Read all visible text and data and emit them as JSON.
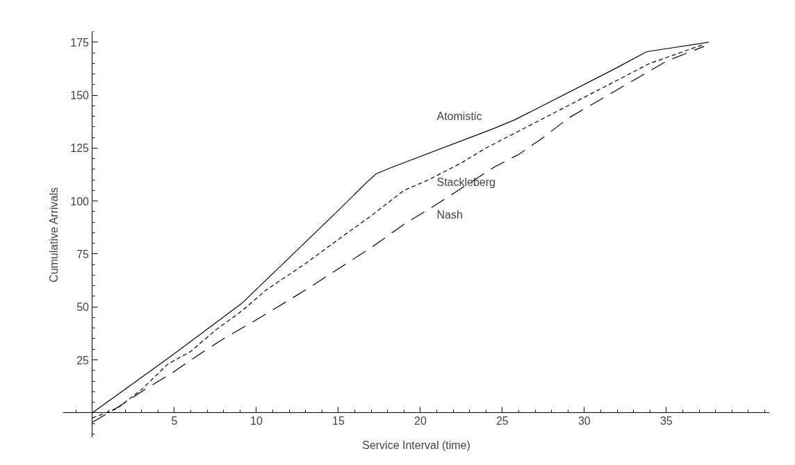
{
  "chart_data": {
    "type": "line",
    "xlabel": "Service Interval (time)",
    "ylabel": "Cumulative Arrivals",
    "xlim": [
      -1.8,
      41.3
    ],
    "ylim": [
      -11.7,
      180
    ],
    "xticks": [
      5,
      10,
      15,
      20,
      25,
      30,
      35
    ],
    "yticks": [
      25,
      50,
      75,
      100,
      125,
      150,
      175
    ],
    "series": [
      {
        "name": "Atomistic",
        "color": "#000000",
        "line_style": "solid",
        "x": [
          0,
          4.8,
          9.1,
          15,
          16.7,
          17.3,
          17.9,
          18.6,
          24.4,
          25.8,
          31.9,
          33.8,
          37.6
        ],
        "values": [
          0,
          26.8,
          51.6,
          95.6,
          108.6,
          112.8,
          114.8,
          116.9,
          134,
          138.5,
          162.6,
          170.5,
          175
        ]
      },
      {
        "name": "Stackleberg",
        "color": "#000000",
        "line_style": "dashed",
        "x": [
          0,
          1.5,
          3,
          4.6,
          6,
          7.5,
          9.1,
          10.6,
          13,
          15.2,
          17,
          19,
          20.5,
          22.5,
          24,
          25.5,
          27,
          30,
          32,
          34,
          37.3
        ],
        "values": [
          -2.4,
          2,
          11,
          23,
          29,
          39,
          48,
          58,
          70.5,
          83,
          93,
          105,
          110,
          118,
          125,
          131,
          137,
          149,
          157,
          165,
          174
        ]
      },
      {
        "name": "Nash",
        "color": "#000000",
        "line_style": "longdash",
        "x": [
          0,
          1.7,
          3.2,
          4.9,
          6.4,
          8,
          9.8,
          11.3,
          13,
          14.6,
          17,
          19,
          20.7,
          22.5,
          24.5,
          26,
          27.5,
          29,
          31,
          33,
          35,
          37.3
        ],
        "values": [
          -4.5,
          3.4,
          11,
          19,
          27,
          35,
          43,
          50,
          58,
          66,
          78,
          89,
          97,
          106,
          116,
          122,
          130,
          139,
          148,
          157,
          166,
          173
        ]
      }
    ]
  }
}
